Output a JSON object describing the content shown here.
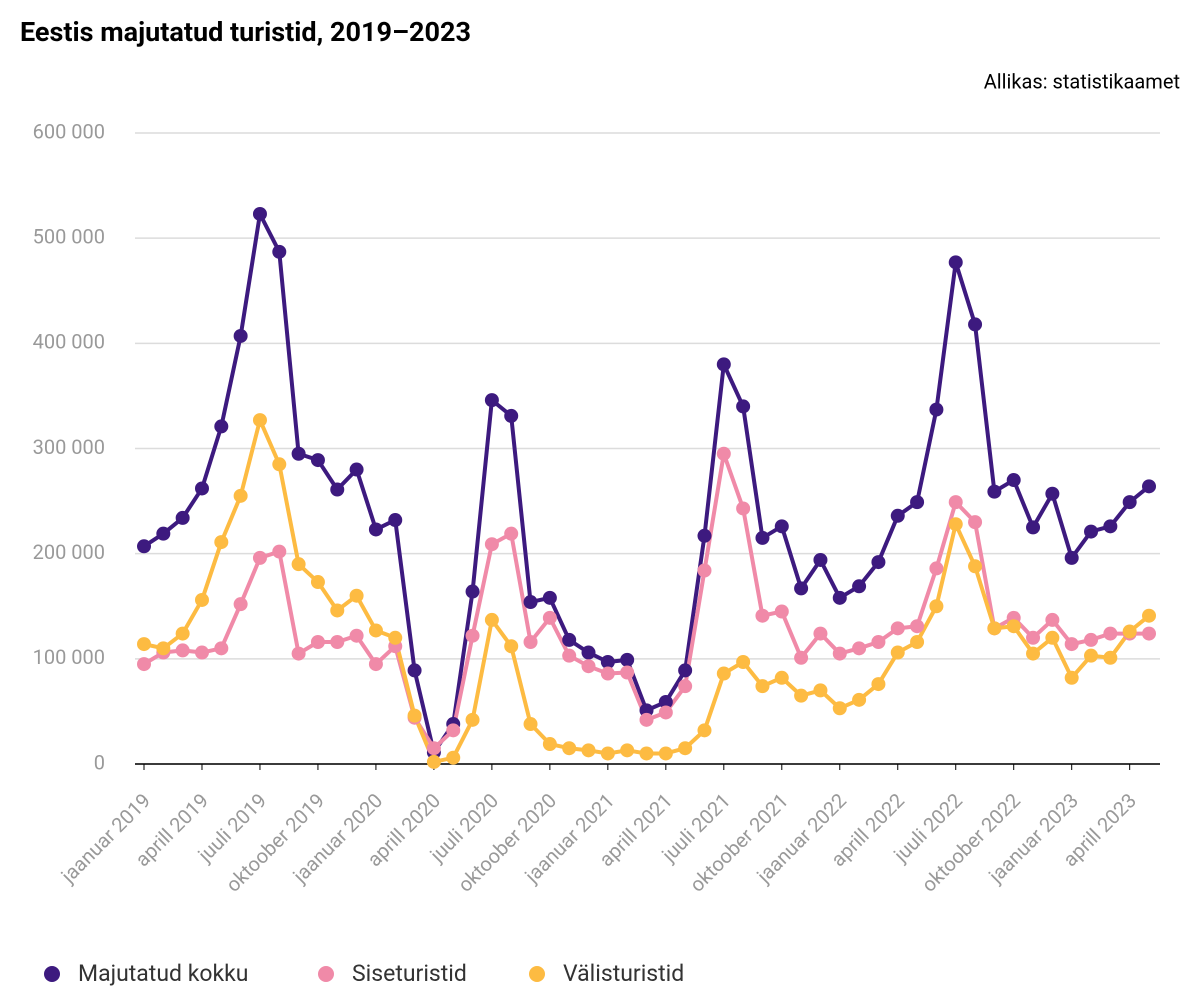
{
  "chart_data": {
    "type": "line",
    "title": "Eestis majutatud turistid, 2019–2023",
    "source": "Allikas: statistikaamet",
    "categories": [
      "jaanuar 2019",
      null,
      null,
      "aprill 2019",
      null,
      null,
      "juuli 2019",
      null,
      null,
      "oktoober 2019",
      null,
      null,
      "jaanuar 2020",
      null,
      null,
      "aprill 2020",
      null,
      null,
      "juuli 2020",
      null,
      null,
      "oktoober 2020",
      null,
      null,
      "jaanuar 2021",
      null,
      null,
      "aprill 2021",
      null,
      null,
      "juuli 2021",
      null,
      null,
      "oktoober 2021",
      null,
      null,
      "jaanuar 2022",
      null,
      null,
      "aprill 2022",
      null,
      null,
      "juuli 2022",
      null,
      null,
      "oktoober 2022",
      null,
      null,
      "jaanuar 2023",
      null,
      null,
      "aprill 2023",
      null
    ],
    "series": [
      {
        "name": "Majutatud kokku",
        "color": "#3d1a7f",
        "values": [
          207000,
          219000,
          234000,
          262000,
          321000,
          407000,
          523000,
          487000,
          295000,
          289000,
          261000,
          280000,
          223000,
          232000,
          89000,
          11000,
          38000,
          164000,
          346000,
          331000,
          154000,
          158000,
          118000,
          106000,
          97000,
          99000,
          51000,
          59000,
          89000,
          217000,
          380000,
          340000,
          215000,
          226000,
          167000,
          194000,
          158000,
          169000,
          192000,
          236000,
          249000,
          337000,
          477000,
          418000,
          259000,
          270000,
          225000,
          257000,
          196000,
          221000,
          226000,
          249000,
          264000
        ]
      },
      {
        "name": "Siseturistid",
        "color": "#f08aa8",
        "values": [
          95000,
          106000,
          108000,
          106000,
          110000,
          152000,
          196000,
          202000,
          105000,
          116000,
          116000,
          122000,
          95000,
          112000,
          44000,
          15000,
          32000,
          122000,
          209000,
          219000,
          116000,
          139000,
          103000,
          93000,
          86000,
          87000,
          42000,
          49000,
          74000,
          184000,
          295000,
          243000,
          141000,
          145000,
          101000,
          124000,
          105000,
          110000,
          116000,
          129000,
          131000,
          186000,
          249000,
          230000,
          129000,
          139000,
          120000,
          137000,
          114000,
          118000,
          124000,
          124000,
          124000
        ]
      },
      {
        "name": "Välisturistid",
        "color": "#fdbb42",
        "values": [
          114000,
          110000,
          124000,
          156000,
          211000,
          255000,
          327000,
          285000,
          190000,
          173000,
          146000,
          160000,
          127000,
          120000,
          46000,
          2000,
          6000,
          42000,
          137000,
          112000,
          38000,
          19000,
          15000,
          13000,
          10000,
          13000,
          10000,
          10000,
          15000,
          32000,
          86000,
          97000,
          74000,
          82000,
          65000,
          70000,
          53000,
          61000,
          76000,
          106000,
          116000,
          150000,
          228000,
          188000,
          129000,
          131000,
          105000,
          120000,
          82000,
          103000,
          101000,
          126000,
          141000
        ]
      }
    ],
    "ylim": [
      0,
      600000
    ],
    "yticks": [
      0,
      {
        "value": 100000,
        "label": "100 000"
      },
      {
        "value": 200000,
        "label": "200 000"
      },
      {
        "value": 300000,
        "label": "300 000"
      },
      {
        "value": 400000,
        "label": "400 000"
      },
      {
        "value": 500000,
        "label": "500 000"
      },
      {
        "value": 600000,
        "label": "600 000"
      }
    ],
    "grid": true,
    "legend": "bottom"
  }
}
